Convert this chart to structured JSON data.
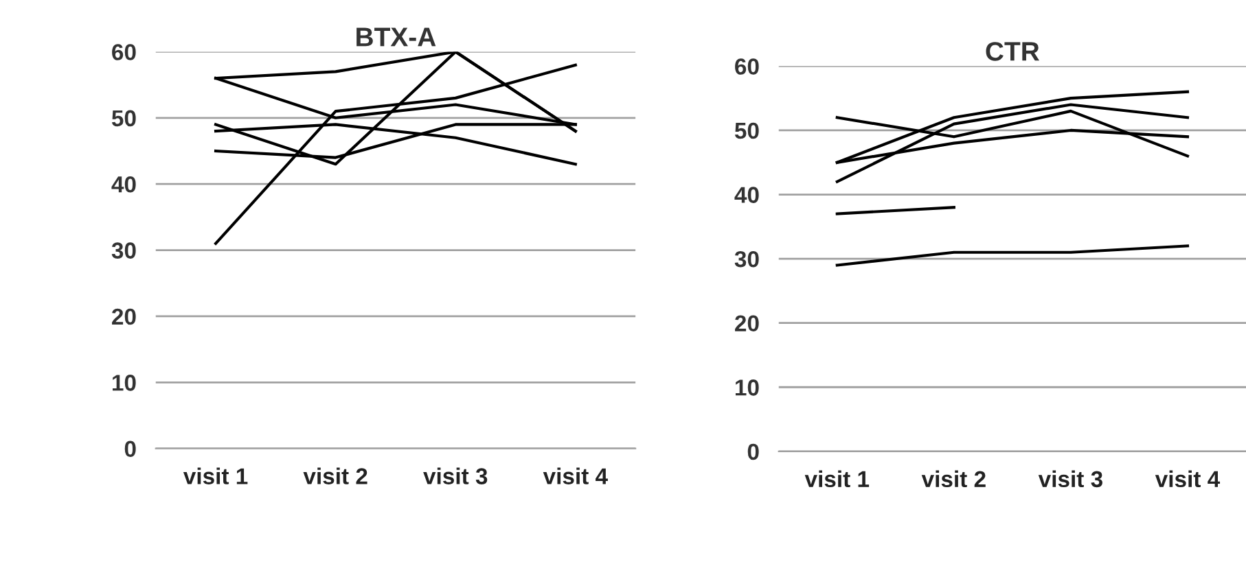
{
  "chart_data": [
    {
      "type": "line",
      "title": "BTX-A",
      "categories": [
        "visit 1",
        "visit 2",
        "visit 3",
        "visit 4"
      ],
      "ylim": [
        0,
        60
      ],
      "yticks": [
        0,
        10,
        20,
        30,
        40,
        50,
        60
      ],
      "grid": "y",
      "marker": "none",
      "line_style": "solid",
      "series": [
        {
          "color": "#000000",
          "values": [
            56,
            57,
            60,
            48
          ]
        },
        {
          "color": "#000000",
          "values": [
            56,
            50,
            52,
            49
          ]
        },
        {
          "color": "#000000",
          "values": [
            31,
            51,
            53,
            58
          ]
        },
        {
          "color": "#000000",
          "values": [
            49,
            43,
            60,
            48
          ]
        },
        {
          "color": "#000000",
          "values": [
            48,
            49,
            47,
            43
          ]
        },
        {
          "color": "#000000",
          "values": [
            45,
            44,
            49,
            49
          ]
        }
      ]
    },
    {
      "type": "line",
      "title": "CTR",
      "categories": [
        "visit 1",
        "visit 2",
        "visit 3",
        "visit 4"
      ],
      "ylim": [
        0,
        60
      ],
      "yticks": [
        0,
        10,
        20,
        30,
        40,
        50,
        60
      ],
      "grid": "y",
      "marker": "none",
      "line_style": "solid",
      "series": [
        {
          "color": "#000000",
          "values": [
            45,
            52,
            55,
            56
          ]
        },
        {
          "color": "#000000",
          "values": [
            42,
            51,
            54,
            52
          ]
        },
        {
          "color": "#000000",
          "values": [
            52,
            49,
            53,
            46
          ]
        },
        {
          "color": "#000000",
          "values": [
            45,
            48,
            50,
            49
          ]
        },
        {
          "color": "#000000",
          "values": [
            37,
            38,
            null,
            null
          ]
        },
        {
          "color": "#000000",
          "values": [
            29,
            31,
            31,
            32
          ]
        }
      ]
    }
  ]
}
